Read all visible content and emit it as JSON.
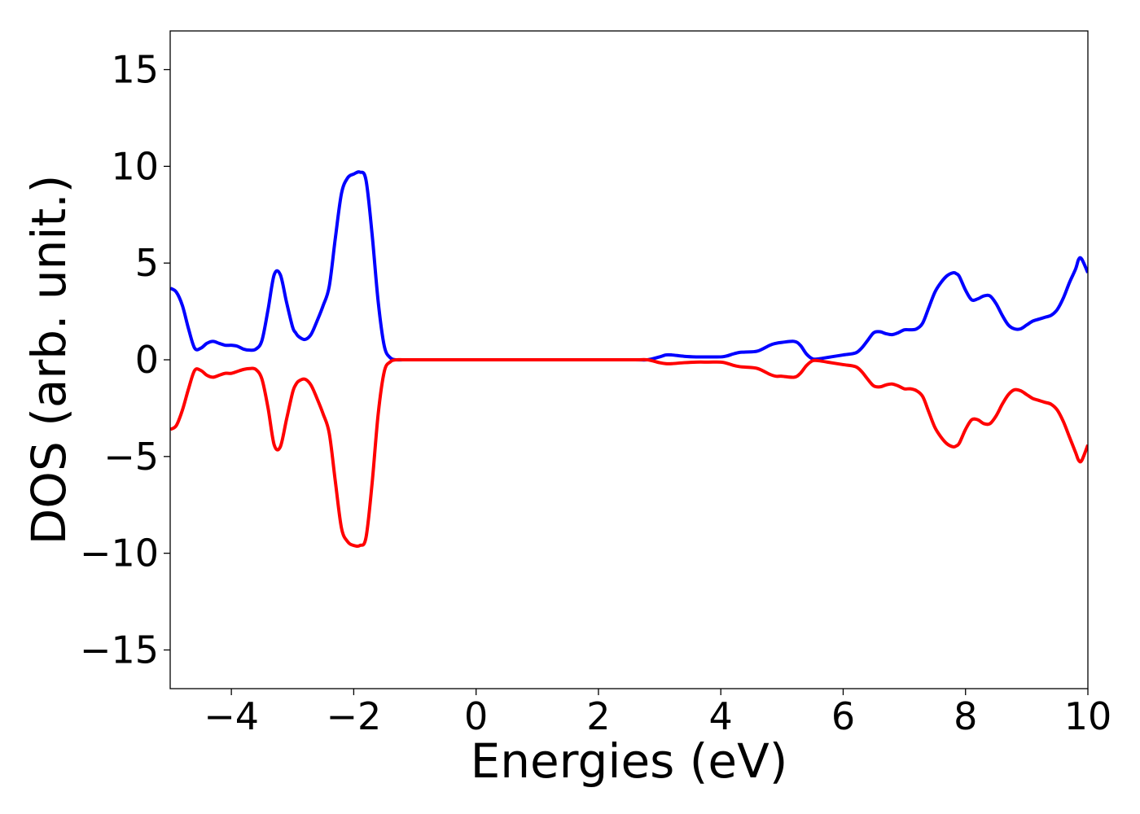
{
  "chart_data": {
    "type": "line",
    "title": "",
    "xlabel": "Energies (eV)",
    "ylabel": "DOS (arb. unit.)",
    "xlim": [
      -5,
      10
    ],
    "ylim": [
      -17,
      17
    ],
    "xticks": [
      -4,
      -2,
      0,
      2,
      4,
      6,
      8,
      10
    ],
    "xtick_labels": [
      "−4",
      "−2",
      "0",
      "2",
      "4",
      "6",
      "8",
      "10"
    ],
    "yticks": [
      15,
      10,
      5,
      0,
      -5,
      -10,
      -15
    ],
    "ytick_labels": [
      "15",
      "10",
      "5",
      "0",
      "−5",
      "−10",
      "−15"
    ],
    "grid": false,
    "legend": "none",
    "series": [
      {
        "color": "#0000ff",
        "x": [
          -5.0,
          -4.9,
          -4.8,
          -4.7,
          -4.6,
          -4.5,
          -4.4,
          -4.3,
          -4.2,
          -4.1,
          -4.0,
          -3.9,
          -3.8,
          -3.7,
          -3.6,
          -3.5,
          -3.4,
          -3.3,
          -3.2,
          -3.1,
          -3.0,
          -2.95,
          -2.9,
          -2.8,
          -2.7,
          -2.6,
          -2.5,
          -2.4,
          -2.3,
          -2.2,
          -2.1,
          -2.0,
          -1.9,
          -1.8,
          -1.7,
          -1.6,
          -1.5,
          -1.4,
          -1.3,
          -1.2,
          -1.1,
          -1.0,
          -0.9,
          -0.8,
          -0.7,
          -0.6,
          -0.5,
          0.0,
          1.0,
          2.0,
          2.6,
          2.8,
          3.0,
          3.1,
          3.2,
          3.4,
          3.6,
          3.8,
          4.0,
          4.1,
          4.2,
          4.3,
          4.4,
          4.6,
          4.8,
          4.9,
          5.0,
          5.2,
          5.3,
          5.4,
          5.5,
          5.6,
          5.8,
          6.0,
          6.2,
          6.3,
          6.4,
          6.5,
          6.6,
          6.7,
          6.8,
          6.9,
          7.0,
          7.1,
          7.2,
          7.3,
          7.4,
          7.5,
          7.6,
          7.7,
          7.8,
          7.85,
          7.9,
          8.0,
          8.1,
          8.2,
          8.3,
          8.4,
          8.5,
          8.6,
          8.7,
          8.8,
          8.9,
          9.0,
          9.1,
          9.2,
          9.3,
          9.4,
          9.5,
          9.6,
          9.7,
          9.8,
          9.85,
          9.9,
          10.0
        ],
        "y": [
          3.7,
          3.5,
          2.8,
          1.6,
          0.6,
          0.6,
          0.85,
          0.95,
          0.85,
          0.75,
          0.75,
          0.7,
          0.55,
          0.5,
          0.55,
          1.0,
          2.6,
          4.4,
          4.4,
          3.0,
          1.7,
          1.4,
          1.2,
          1.05,
          1.3,
          2.0,
          2.8,
          3.8,
          6.3,
          8.6,
          9.4,
          9.6,
          9.7,
          9.3,
          6.5,
          3.0,
          0.7,
          0.1,
          0.0,
          0.0,
          0.0,
          0.0,
          0.0,
          0.0,
          0.0,
          0.0,
          0.0,
          0.0,
          0.0,
          0.0,
          0.0,
          0.0,
          0.15,
          0.25,
          0.25,
          0.18,
          0.15,
          0.15,
          0.15,
          0.2,
          0.3,
          0.38,
          0.4,
          0.45,
          0.75,
          0.85,
          0.9,
          0.95,
          0.75,
          0.3,
          0.05,
          0.05,
          0.15,
          0.25,
          0.35,
          0.6,
          1.0,
          1.4,
          1.45,
          1.35,
          1.3,
          1.4,
          1.55,
          1.55,
          1.6,
          1.9,
          2.7,
          3.5,
          4.0,
          4.35,
          4.5,
          4.45,
          4.3,
          3.6,
          3.1,
          3.15,
          3.3,
          3.3,
          2.9,
          2.3,
          1.8,
          1.6,
          1.6,
          1.8,
          2.0,
          2.1,
          2.2,
          2.3,
          2.6,
          3.2,
          4.0,
          4.7,
          5.2,
          5.2,
          4.5
        ]
      },
      {
        "color": "#ff0000",
        "x": [
          -5.0,
          -4.9,
          -4.8,
          -4.7,
          -4.6,
          -4.5,
          -4.4,
          -4.3,
          -4.2,
          -4.1,
          -4.0,
          -3.9,
          -3.8,
          -3.7,
          -3.6,
          -3.5,
          -3.4,
          -3.3,
          -3.2,
          -3.1,
          -3.0,
          -2.95,
          -2.9,
          -2.8,
          -2.7,
          -2.6,
          -2.5,
          -2.4,
          -2.3,
          -2.2,
          -2.1,
          -2.0,
          -1.9,
          -1.8,
          -1.7,
          -1.6,
          -1.5,
          -1.4,
          -1.3,
          -1.2,
          -1.1,
          -1.0,
          -0.9,
          -0.8,
          -0.7,
          -0.6,
          -0.5,
          0.0,
          1.0,
          2.0,
          2.6,
          2.8,
          3.0,
          3.1,
          3.2,
          3.4,
          3.6,
          3.8,
          4.0,
          4.1,
          4.2,
          4.3,
          4.4,
          4.6,
          4.8,
          4.9,
          5.0,
          5.2,
          5.3,
          5.4,
          5.5,
          5.6,
          5.8,
          6.0,
          6.2,
          6.3,
          6.4,
          6.5,
          6.6,
          6.7,
          6.8,
          6.9,
          7.0,
          7.1,
          7.2,
          7.3,
          7.4,
          7.5,
          7.6,
          7.7,
          7.8,
          7.85,
          7.9,
          8.0,
          8.1,
          8.2,
          8.3,
          8.4,
          8.5,
          8.6,
          8.7,
          8.8,
          8.9,
          9.0,
          9.1,
          9.2,
          9.3,
          9.4,
          9.5,
          9.6,
          9.7,
          9.8,
          9.85,
          9.9,
          10.0
        ],
        "y": [
          -3.6,
          -3.4,
          -2.6,
          -1.5,
          -0.55,
          -0.55,
          -0.8,
          -0.9,
          -0.8,
          -0.7,
          -0.7,
          -0.6,
          -0.5,
          -0.45,
          -0.5,
          -1.0,
          -2.5,
          -4.4,
          -4.5,
          -3.1,
          -1.7,
          -1.3,
          -1.1,
          -1.0,
          -1.3,
          -2.0,
          -2.8,
          -3.8,
          -6.3,
          -8.7,
          -9.4,
          -9.6,
          -9.6,
          -9.2,
          -6.4,
          -2.8,
          -0.6,
          -0.1,
          0.0,
          0.0,
          0.0,
          0.0,
          0.0,
          0.0,
          0.0,
          0.0,
          0.0,
          0.0,
          0.0,
          0.0,
          0.0,
          0.0,
          -0.15,
          -0.2,
          -0.2,
          -0.15,
          -0.12,
          -0.12,
          -0.12,
          -0.18,
          -0.28,
          -0.35,
          -0.38,
          -0.45,
          -0.75,
          -0.85,
          -0.85,
          -0.9,
          -0.7,
          -0.3,
          -0.05,
          -0.05,
          -0.15,
          -0.25,
          -0.35,
          -0.6,
          -1.0,
          -1.35,
          -1.4,
          -1.3,
          -1.25,
          -1.35,
          -1.5,
          -1.5,
          -1.6,
          -1.9,
          -2.7,
          -3.5,
          -4.0,
          -4.35,
          -4.5,
          -4.45,
          -4.3,
          -3.6,
          -3.1,
          -3.1,
          -3.3,
          -3.3,
          -2.9,
          -2.3,
          -1.8,
          -1.55,
          -1.6,
          -1.8,
          -2.0,
          -2.1,
          -2.2,
          -2.3,
          -2.6,
          -3.2,
          -4.0,
          -4.8,
          -5.2,
          -5.2,
          -4.4
        ]
      }
    ]
  }
}
